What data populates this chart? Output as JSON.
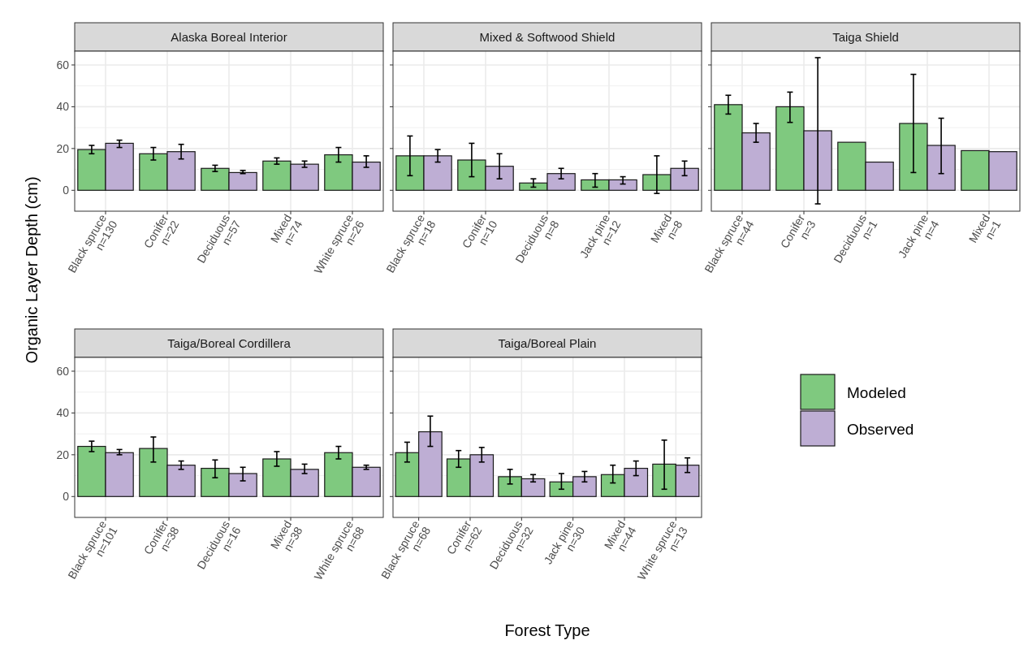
{
  "chart_data": [
    {
      "type": "bar",
      "title": "Alaska Boreal Interior",
      "ylabel": "Organic Layer Depth (cm)",
      "legend": "right",
      "grid": true,
      "ylim": [
        -10,
        66.6
      ],
      "yticks": [
        0,
        20,
        40,
        60
      ],
      "categories": [
        "Black spruce\nn=130",
        "Conifer\nn=22",
        "Deciduous\nn=57",
        "Mixed\nn=74",
        "White spruce\nn=26"
      ],
      "series": [
        {
          "name": "Modeled",
          "color": "#7fc97f",
          "values": [
            19.5,
            17.5,
            10.5,
            14,
            17
          ],
          "errors": [
            [
              17.5,
              21.5
            ],
            [
              14.5,
              20.5
            ],
            [
              9,
              12
            ],
            [
              12.5,
              15.5
            ],
            [
              13.5,
              20.5
            ]
          ]
        },
        {
          "name": "Observed",
          "color": "#beaed4",
          "values": [
            22.5,
            18.5,
            8.5,
            12.5,
            13.5
          ],
          "errors": [
            [
              20.5,
              24
            ],
            [
              15,
              22
            ],
            [
              8,
              9.5
            ],
            [
              11,
              14
            ],
            [
              11,
              16.5
            ]
          ]
        }
      ]
    },
    {
      "type": "bar",
      "title": "Mixed & Softwood Shield",
      "grid": true,
      "tick_labels": "x",
      "ylim": [
        -10,
        66.6
      ],
      "yticks": [
        0,
        20,
        40,
        60
      ],
      "categories": [
        "Black spruce\nn=18",
        "Conifer\nn=10",
        "Deciduous\nn=8",
        "Jack pine\nn=12",
        "Mixed\nn=8"
      ],
      "series": [
        {
          "color": "#7fc97f",
          "values": [
            16.5,
            14.5,
            3.5,
            5,
            7.5
          ],
          "errors": [
            [
              7,
              26
            ],
            [
              6.5,
              22.5
            ],
            [
              1.5,
              5.5
            ],
            [
              1.5,
              8
            ],
            [
              -1.5,
              16.5
            ]
          ]
        },
        {
          "color": "#beaed4",
          "values": [
            16.5,
            11.5,
            8,
            5,
            10.5
          ],
          "errors": [
            [
              13.5,
              19.5
            ],
            [
              5.5,
              17.5
            ],
            [
              5.5,
              10.5
            ],
            [
              3,
              6.5
            ],
            [
              7,
              14
            ]
          ]
        }
      ]
    },
    {
      "type": "bar",
      "title": "Taiga Shield",
      "grid": true,
      "tick_labels": "x",
      "ylim": [
        -10,
        66.6
      ],
      "yticks": [
        0,
        20,
        40,
        60
      ],
      "categories": [
        "Black spruce\nn=44",
        "Conifer\nn=3",
        "Deciduous\nn=1",
        "Jack pine\nn=4",
        "Mixed\nn=1"
      ],
      "series": [
        {
          "color": "#7fc97f",
          "values": [
            41,
            40,
            23,
            32,
            19
          ],
          "errors": [
            [
              36.5,
              45.5
            ],
            [
              32.5,
              47
            ],
            null,
            [
              8.5,
              55.5
            ],
            null
          ]
        },
        {
          "color": "#beaed4",
          "values": [
            27.5,
            28.5,
            13.5,
            21.5,
            18.5
          ],
          "errors": [
            [
              23,
              32
            ],
            [
              -6.5,
              63.5
            ],
            null,
            [
              8,
              34.5
            ],
            null
          ]
        }
      ]
    },
    {
      "type": "bar",
      "title": "Taiga/Boreal Cordillera",
      "grid": true,
      "ylim": [
        -10,
        66.6
      ],
      "yticks": [
        0,
        20,
        40,
        60
      ],
      "categories": [
        "Black spruce\nn=101",
        "Conifer\nn=38",
        "Deciduous\nn=16",
        "Mixed\nn=38",
        "White spruce\nn=68"
      ],
      "series": [
        {
          "color": "#7fc97f",
          "values": [
            24,
            23,
            13.5,
            18,
            21
          ],
          "errors": [
            [
              21.5,
              26.5
            ],
            [
              16.5,
              28.5
            ],
            [
              9,
              17.5
            ],
            [
              14.5,
              21.5
            ],
            [
              18,
              24
            ]
          ]
        },
        {
          "color": "#beaed4",
          "values": [
            21,
            15,
            11,
            13,
            14
          ],
          "errors": [
            [
              20,
              22.5
            ],
            [
              13,
              17
            ],
            [
              7.5,
              14
            ],
            [
              11,
              15.5
            ],
            [
              13,
              15
            ]
          ]
        }
      ]
    },
    {
      "type": "bar",
      "title": "Taiga/Boreal Plain",
      "xlabel": "Forest Type",
      "grid": true,
      "tick_labels": "x",
      "ylim": [
        -10,
        66.6
      ],
      "yticks": [
        0,
        20,
        40,
        60
      ],
      "categories": [
        "Black spruce\nn=68",
        "Conifer\nn=62",
        "Deciduous\nn=32",
        "Jack pine\nn=30",
        "Mixed\nn=44",
        "White spruce\nn=13"
      ],
      "series": [
        {
          "color": "#7fc97f",
          "values": [
            21,
            18,
            9.5,
            7,
            10.5,
            15.5
          ],
          "errors": [
            [
              16.5,
              26
            ],
            [
              14,
              22
            ],
            [
              6,
              13
            ],
            [
              3.5,
              11
            ],
            [
              6.5,
              15
            ],
            [
              3.5,
              27
            ]
          ]
        },
        {
          "color": "#beaed4",
          "values": [
            31,
            20,
            8.5,
            9.5,
            13.5,
            15
          ],
          "errors": [
            [
              24,
              38.5
            ],
            [
              16.5,
              23.5
            ],
            [
              7,
              10.5
            ],
            [
              7,
              12
            ],
            [
              10,
              17
            ],
            [
              11.5,
              18.5
            ]
          ]
        }
      ]
    }
  ]
}
